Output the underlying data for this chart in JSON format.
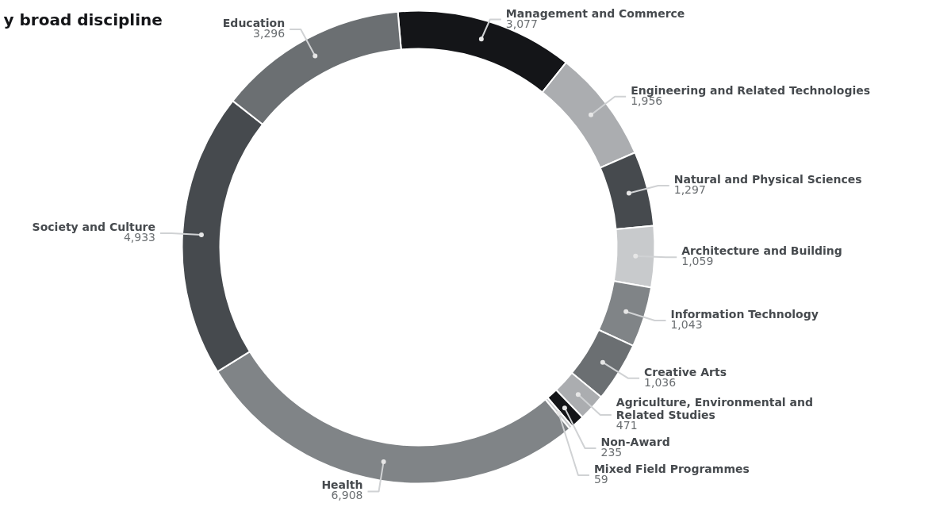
{
  "chart_data": {
    "type": "donut",
    "title": "y broad discipline",
    "categories": [
      "Management and Commerce",
      "Engineering and Related Technologies",
      "Natural and Physical Sciences",
      "Architecture and Building",
      "Information Technology",
      "Creative Arts",
      "Agriculture, Environmental and Related Studies",
      "Non-Award",
      "Mixed Field Programmes",
      "Health",
      "Society and Culture",
      "Education"
    ],
    "values": [
      3077,
      1956,
      1297,
      1059,
      1043,
      1036,
      471,
      235,
      59,
      6908,
      4933,
      3296
    ],
    "colors": [
      "#141518",
      "#abadb0",
      "#464a4e",
      "#c8cacc",
      "#808487",
      "#6b6f72",
      "#abadb0",
      "#141518",
      "#c8cacc",
      "#808487",
      "#464a4e",
      "#6b6f72"
    ],
    "value_labels": [
      "3,077",
      "1,956",
      "1,297",
      "1,059",
      "1,043",
      "1,036",
      "471",
      "235",
      "59",
      "6,908",
      "4,933",
      "3,296"
    ]
  }
}
